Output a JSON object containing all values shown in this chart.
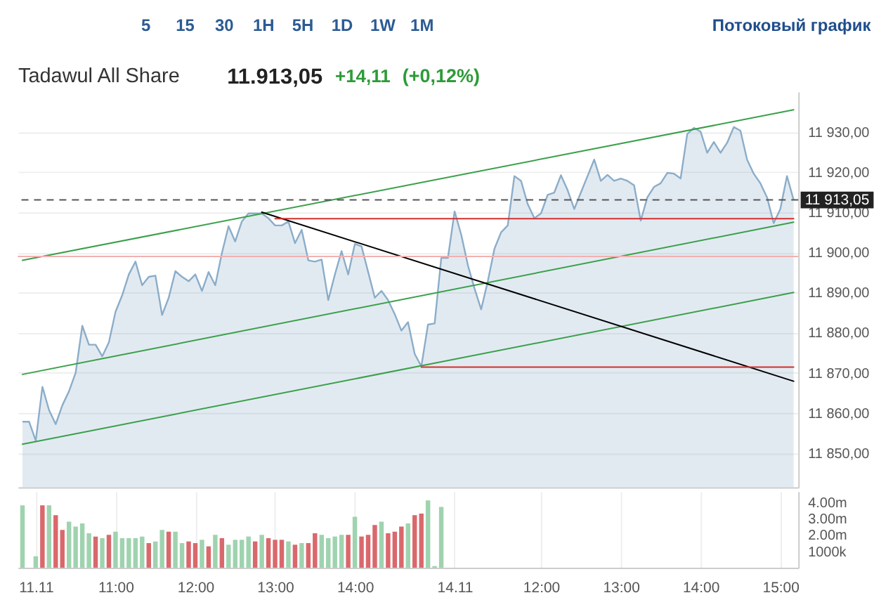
{
  "chart_data": [
    {
      "type": "area",
      "title": "Tadawul All Share",
      "annotations": [
        "5",
        "15",
        "30",
        "1H",
        "5H",
        "1D",
        "1W",
        "1M",
        "Потоковый график",
        "11.913,05",
        "+14,11",
        "(+0,12%)"
      ],
      "categories": [
        null,
        null,
        null,
        null,
        null,
        null,
        null,
        null,
        null,
        null,
        null,
        null,
        null,
        null,
        null,
        null,
        null,
        null,
        null,
        null,
        null,
        null,
        null,
        null,
        null,
        null,
        null,
        null,
        null,
        null,
        null,
        null,
        null,
        null,
        null,
        null,
        null,
        null,
        null,
        null,
        null,
        null,
        null,
        null,
        null,
        null,
        null,
        null,
        null,
        null,
        null,
        null,
        null,
        null,
        null,
        null,
        null,
        null,
        null,
        null,
        null,
        null,
        null,
        null,
        null,
        null,
        null,
        null,
        null,
        null,
        null,
        null,
        null,
        null,
        null,
        null,
        null,
        null,
        null,
        null,
        null,
        null,
        null,
        null,
        null,
        null,
        null,
        null,
        null,
        null,
        null,
        null,
        null,
        null,
        null,
        null,
        null,
        null,
        null,
        null,
        null,
        null,
        null,
        null,
        null,
        null,
        null,
        null,
        null,
        null,
        null,
        null,
        null,
        null,
        null,
        null,
        null
      ],
      "ylim": [
        11841.5,
        11940
      ],
      "yticks": [
        {
          "value": 11850,
          "label": "11 850,00"
        },
        {
          "value": 11860,
          "label": "11 860,00"
        },
        {
          "value": 11870,
          "label": "11 870,00"
        },
        {
          "value": 11880,
          "label": "11 880,00"
        },
        {
          "value": 11890,
          "label": "11 890,00"
        },
        {
          "value": 11900,
          "label": "11 900,00"
        },
        {
          "value": 11910,
          "label": "11 910,00"
        },
        {
          "value": 11920,
          "label": "11 920,00"
        },
        {
          "value": 11930,
          "label": "11 930,00"
        }
      ],
      "grid": "y",
      "series": [
        {
          "color": "#8badc9",
          "values": [
            11857.8,
            11857.8,
            11853.1,
            11866.5,
            11860.7,
            11857.2,
            11861.9,
            11865.4,
            11870.0,
            11881.7,
            11877.0,
            11877.0,
            11874.1,
            11877.6,
            11885.2,
            11889.3,
            11894.5,
            11897.7,
            11891.8,
            11893.9,
            11894.2,
            11884.4,
            11888.7,
            11895.3,
            11893.9,
            11892.8,
            11894.5,
            11890.4,
            11895.1,
            11891.8,
            11899.8,
            11906.5,
            11902.7,
            11907.7,
            11909.7,
            11909.7,
            11909.7,
            11908.5,
            11906.7,
            11906.7,
            11907.7,
            11902.3,
            11905.6,
            11898.0,
            11897.7,
            11898.2,
            11888.1,
            11894.5,
            11900.3,
            11894.5,
            11902.1,
            11901.5,
            11895.1,
            11888.7,
            11890.4,
            11888.1,
            11884.6,
            11880.5,
            11882.6,
            11874.7,
            11871.6,
            11882.0,
            11882.3,
            11898.6,
            11898.6,
            11910.2,
            11904.4,
            11896.8,
            11891.0,
            11885.8,
            11892.8,
            11900.9,
            11905.0,
            11906.7,
            11919.0,
            11917.8,
            11912.0,
            11908.5,
            11909.7,
            11914.3,
            11914.9,
            11919.2,
            11915.5,
            11910.8,
            11914.9,
            11919.0,
            11923.1,
            11917.8,
            11919.3,
            11917.8,
            11918.4,
            11917.8,
            11916.7,
            11907.9,
            11913.7,
            11916.3,
            11917.2,
            11919.8,
            11919.6,
            11918.4,
            11929.5,
            11931.0,
            11930.1,
            11924.8,
            11927.5,
            11924.8,
            11927.3,
            11931.2,
            11930.3,
            11923.1,
            11919.6,
            11917.2,
            11913.7,
            11907.3,
            11910.8,
            11919.0,
            11913.05
          ]
        },
        {
          "type": "line",
          "color": "#3aa04a",
          "values": [
            11898.0,
            null,
            null,
            null,
            null,
            null,
            null,
            null,
            null,
            null,
            null,
            null,
            null,
            null,
            null,
            null,
            null,
            null,
            null,
            null,
            null,
            null,
            null,
            null,
            null,
            null,
            null,
            null,
            null,
            null,
            null,
            null,
            null,
            null,
            null,
            null,
            null,
            null,
            null,
            null,
            null,
            null,
            null,
            null,
            null,
            null,
            null,
            null,
            null,
            null,
            null,
            null,
            null,
            null,
            null,
            null,
            null,
            null,
            null,
            null,
            null,
            null,
            null,
            null,
            null,
            null,
            null,
            null,
            null,
            null,
            null,
            null,
            null,
            null,
            null,
            null,
            null,
            null,
            null,
            null,
            null,
            null,
            null,
            null,
            null,
            null,
            null,
            null,
            null,
            null,
            null,
            null,
            null,
            null,
            null,
            null,
            null,
            null,
            null,
            null,
            null,
            null,
            null,
            null,
            null,
            null,
            null,
            null,
            null,
            null,
            null,
            null,
            null,
            null,
            null,
            null,
            11935.5
          ]
        },
        {
          "type": "line",
          "color": "#3aa04a",
          "values": [
            11869.6,
            null,
            null,
            null,
            null,
            null,
            null,
            null,
            null,
            null,
            null,
            null,
            null,
            null,
            null,
            null,
            null,
            null,
            null,
            null,
            null,
            null,
            null,
            null,
            null,
            null,
            null,
            null,
            null,
            null,
            null,
            null,
            null,
            null,
            null,
            null,
            null,
            null,
            null,
            null,
            null,
            null,
            null,
            null,
            null,
            null,
            null,
            null,
            null,
            null,
            null,
            null,
            null,
            null,
            null,
            null,
            null,
            null,
            null,
            null,
            null,
            null,
            null,
            null,
            null,
            null,
            null,
            null,
            null,
            null,
            null,
            null,
            null,
            null,
            null,
            null,
            null,
            null,
            null,
            null,
            null,
            null,
            null,
            null,
            null,
            null,
            null,
            null,
            null,
            null,
            null,
            null,
            null,
            null,
            null,
            null,
            null,
            null,
            null,
            null,
            null,
            null,
            null,
            null,
            null,
            null,
            null,
            null,
            null,
            null,
            null,
            null,
            null,
            null,
            null,
            null,
            11907.5
          ]
        },
        {
          "type": "line",
          "color": "#3aa04a",
          "values": [
            11852.2,
            null,
            null,
            null,
            null,
            null,
            null,
            null,
            null,
            null,
            null,
            null,
            null,
            null,
            null,
            null,
            null,
            null,
            null,
            null,
            null,
            null,
            null,
            null,
            null,
            null,
            null,
            null,
            null,
            null,
            null,
            null,
            null,
            null,
            null,
            null,
            null,
            null,
            null,
            null,
            null,
            null,
            null,
            null,
            null,
            null,
            null,
            null,
            null,
            null,
            null,
            null,
            null,
            null,
            null,
            null,
            null,
            null,
            null,
            null,
            null,
            null,
            null,
            null,
            null,
            null,
            null,
            null,
            null,
            null,
            null,
            null,
            null,
            null,
            null,
            null,
            null,
            null,
            null,
            null,
            null,
            null,
            null,
            null,
            null,
            null,
            null,
            null,
            null,
            null,
            null,
            null,
            null,
            null,
            null,
            null,
            null,
            null,
            null,
            null,
            null,
            null,
            null,
            null,
            null,
            null,
            null,
            null,
            null,
            null,
            null,
            null,
            null,
            null,
            null,
            null,
            11890.0
          ]
        },
        {
          "type": "line",
          "color": "#000000",
          "values": [
            null,
            null,
            null,
            null,
            null,
            null,
            null,
            null,
            null,
            null,
            null,
            null,
            null,
            null,
            null,
            null,
            null,
            null,
            null,
            null,
            null,
            null,
            null,
            null,
            null,
            null,
            null,
            null,
            null,
            null,
            null,
            null,
            null,
            null,
            null,
            null,
            11910.0,
            null,
            null,
            null,
            null,
            null,
            null,
            null,
            null,
            null,
            null,
            null,
            null,
            null,
            null,
            null,
            null,
            null,
            null,
            null,
            null,
            null,
            null,
            null,
            null,
            null,
            null,
            null,
            null,
            null,
            null,
            null,
            null,
            null,
            null,
            null,
            null,
            null,
            null,
            null,
            null,
            null,
            null,
            null,
            null,
            null,
            null,
            null,
            null,
            null,
            null,
            null,
            null,
            null,
            null,
            null,
            null,
            null,
            null,
            null,
            null,
            null,
            null,
            null,
            null,
            null,
            null,
            null,
            null,
            null,
            null,
            null,
            null,
            null,
            null,
            null,
            null,
            null,
            null,
            null,
            11867.9
          ]
        },
        {
          "type": "line",
          "color": "#d0312d",
          "values": [
            null,
            null,
            null,
            null,
            null,
            null,
            null,
            null,
            null,
            null,
            null,
            null,
            null,
            null,
            null,
            null,
            null,
            null,
            null,
            null,
            null,
            null,
            null,
            null,
            null,
            null,
            null,
            null,
            null,
            null,
            null,
            null,
            null,
            null,
            null,
            null,
            null,
            null,
            11908.4,
            null,
            null,
            null,
            null,
            null,
            null,
            null,
            null,
            null,
            null,
            null,
            null,
            null,
            null,
            null,
            null,
            null,
            null,
            null,
            null,
            null,
            null,
            null,
            null,
            null,
            null,
            null,
            null,
            null,
            null,
            null,
            null,
            null,
            null,
            null,
            null,
            null,
            null,
            null,
            null,
            null,
            null,
            null,
            null,
            null,
            null,
            null,
            null,
            null,
            null,
            null,
            null,
            null,
            null,
            null,
            null,
            null,
            null,
            null,
            null,
            null,
            null,
            null,
            null,
            null,
            null,
            null,
            null,
            null,
            null,
            null,
            null,
            null,
            null,
            null,
            null,
            null,
            11908.4
          ]
        },
        {
          "type": "line",
          "color": "#d0312d",
          "values": [
            null,
            null,
            null,
            null,
            null,
            null,
            null,
            null,
            null,
            null,
            null,
            null,
            null,
            null,
            null,
            null,
            null,
            null,
            null,
            null,
            null,
            null,
            null,
            null,
            null,
            null,
            null,
            null,
            null,
            null,
            null,
            null,
            null,
            null,
            null,
            null,
            null,
            null,
            null,
            null,
            null,
            null,
            null,
            null,
            null,
            null,
            null,
            null,
            null,
            null,
            null,
            null,
            null,
            null,
            null,
            null,
            null,
            null,
            null,
            null,
            11871.4,
            null,
            null,
            null,
            null,
            null,
            null,
            null,
            null,
            null,
            null,
            null,
            null,
            null,
            null,
            null,
            null,
            null,
            null,
            null,
            null,
            null,
            null,
            null,
            null,
            null,
            null,
            null,
            null,
            null,
            null,
            null,
            null,
            null,
            null,
            null,
            null,
            null,
            null,
            null,
            null,
            null,
            null,
            null,
            null,
            null,
            null,
            null,
            null,
            null,
            null,
            null,
            null,
            null,
            null,
            null,
            11871.4
          ]
        }
      ],
      "ref_lines": [
        {
          "axis": "y",
          "value": 11913.05,
          "label": "11 913,05",
          "color": "#555555",
          "line_style": "dashed"
        },
        {
          "axis": "y",
          "value": 11899,
          "color": "#f2b0b0"
        }
      ]
    },
    {
      "type": "bar",
      "categories": [
        null,
        null,
        "11.11",
        null,
        null,
        null,
        null,
        null,
        null,
        null,
        null,
        null,
        null,
        null,
        "11:00",
        null,
        null,
        null,
        null,
        null,
        null,
        null,
        null,
        null,
        null,
        null,
        "12:00",
        null,
        null,
        null,
        null,
        null,
        null,
        null,
        null,
        null,
        null,
        null,
        "13:00",
        null,
        null,
        null,
        null,
        null,
        null,
        null,
        null,
        null,
        null,
        null,
        "14:00",
        null,
        null,
        null,
        null,
        null,
        null,
        null,
        null,
        null,
        null,
        null,
        null,
        null,
        null,
        "14.11",
        null,
        null,
        null,
        null,
        null,
        null,
        null,
        null,
        null,
        null,
        null,
        null,
        "12:00",
        null,
        null,
        null,
        null,
        null,
        null,
        null,
        null,
        null,
        null,
        null,
        "13:00",
        null,
        null,
        null,
        null,
        null,
        null,
        null,
        null,
        null,
        null,
        null,
        "14:00",
        null,
        null,
        null,
        null,
        null,
        null,
        null,
        null,
        null,
        null,
        null,
        "15:00",
        null,
        null
      ],
      "ylim": [
        0,
        4650000
      ],
      "yticks": [
        {
          "value": 1000000,
          "label": "1000k"
        },
        {
          "value": 2000000,
          "label": "2.00m"
        },
        {
          "value": 3000000,
          "label": "3.00m"
        },
        {
          "value": 4000000,
          "label": "4.00m"
        }
      ],
      "grid": "x",
      "values": [
        3800000,
        null,
        700000,
        3800000,
        3800000,
        3200000,
        2300000,
        2800000,
        2500000,
        2700000,
        2100000,
        1900000,
        1800000,
        2000000,
        2200000,
        1800000,
        1800000,
        1800000,
        1900000,
        1500000,
        1600000,
        2300000,
        2200000,
        2200000,
        1500000,
        1600000,
        1500000,
        1700000,
        1300000,
        2000000,
        1800000,
        1400000,
        1700000,
        1700000,
        1900000,
        1600000,
        2000000,
        1800000,
        1700000,
        1700000,
        1600000,
        1400000,
        1500000,
        1500000,
        2100000,
        2000000,
        1800000,
        1900000,
        2000000,
        2000000,
        3100000,
        1900000,
        2000000,
        2600000,
        2800000,
        2100000,
        2200000,
        2500000,
        2700000,
        3200000,
        3300000,
        4100000,
        100000,
        3700000,
        null,
        null,
        null,
        null,
        null,
        null,
        null,
        null,
        null,
        null,
        null,
        null,
        null,
        null,
        null,
        null,
        null,
        null,
        null,
        null,
        null,
        null,
        null,
        null,
        null,
        null,
        null,
        null,
        null,
        null,
        null,
        null,
        null,
        null,
        null,
        null,
        null,
        null,
        null,
        null,
        null,
        null,
        null,
        null,
        null,
        null,
        null,
        null,
        null,
        null,
        null,
        null,
        null
      ],
      "colors": [
        "#9fd3af",
        null,
        "#9fd3af",
        "#d9686c",
        "#9fd3af",
        "#d9686c",
        "#d9686c",
        "#9fd3af",
        "#9fd3af",
        "#9fd3af",
        "#9fd3af",
        "#d9686c",
        "#9fd3af",
        "#d9686c",
        "#9fd3af",
        "#9fd3af",
        "#9fd3af",
        "#9fd3af",
        "#9fd3af",
        "#d9686c",
        "#9fd3af",
        "#9fd3af",
        "#d9686c",
        "#9fd3af",
        "#9fd3af",
        "#d9686c",
        "#d9686c",
        "#9fd3af",
        "#d9686c",
        "#9fd3af",
        "#d9686c",
        "#9fd3af",
        "#9fd3af",
        "#9fd3af",
        "#9fd3af",
        "#d9686c",
        "#9fd3af",
        "#d9686c",
        "#d9686c",
        "#d9686c",
        "#9fd3af",
        "#d9686c",
        "#9fd3af",
        "#d9686c",
        "#d9686c",
        "#9fd3af",
        "#9fd3af",
        "#9fd3af",
        "#9fd3af",
        "#d9686c",
        "#9fd3af",
        "#d9686c",
        "#d9686c",
        "#d9686c",
        "#9fd3af",
        "#d9686c",
        "#d9686c",
        "#d9686c",
        "#9fd3af",
        "#d9686c",
        "#d9686c",
        "#9fd3af",
        "#9fd3af",
        "#9fd3af",
        null,
        null,
        null,
        null,
        null,
        null,
        null,
        null,
        null,
        null,
        null,
        null,
        null,
        null,
        null,
        null,
        null,
        null,
        null,
        null,
        null,
        null,
        null,
        null,
        null,
        null,
        null,
        null,
        null,
        null,
        null,
        null,
        null,
        null,
        null,
        null,
        null,
        null,
        null,
        null,
        null,
        null,
        null,
        null,
        null,
        null,
        null,
        null,
        null,
        null,
        null,
        null,
        null
      ]
    }
  ]
}
